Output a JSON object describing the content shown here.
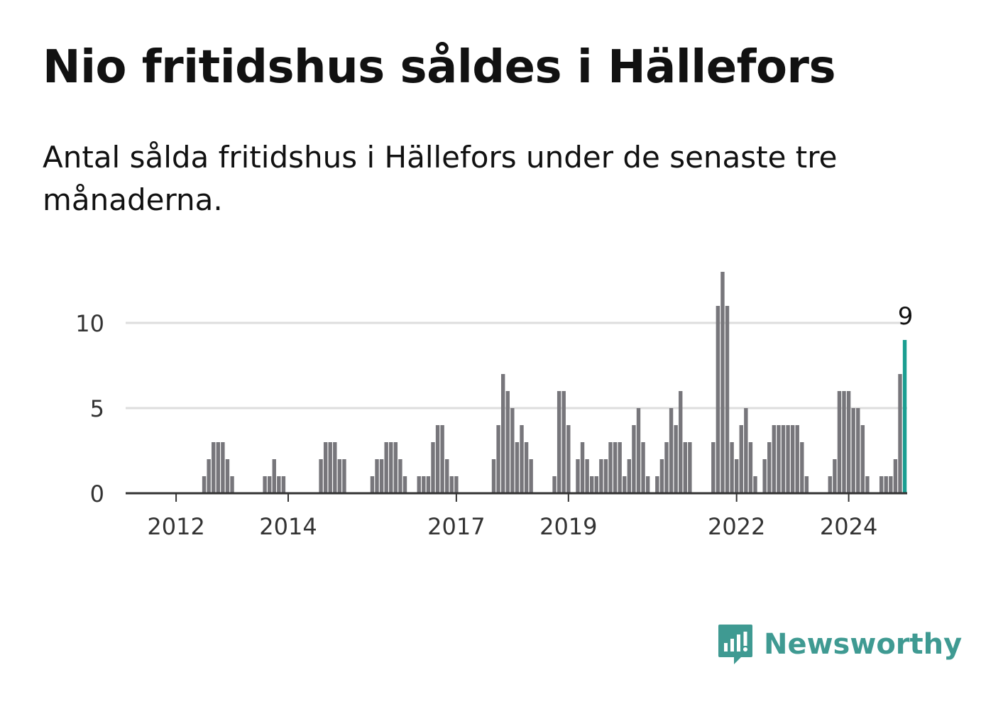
{
  "title": "Nio fritidshus såldes i Hällefors",
  "subtitle": "Antal sålda fritidshus i Hällefors under de senaste tre månaderna.",
  "brand": {
    "name": "Newsworthy",
    "icon": "newsworthy-logo-icon",
    "color": "#3f9a92"
  },
  "colors": {
    "bar": "#77767b",
    "highlight": "#1a9e91",
    "grid": "#dddddd",
    "axis": "#333333"
  },
  "chart_data": {
    "type": "bar",
    "x_type": "month",
    "start": "2011-07",
    "values": [
      0,
      0,
      0,
      0,
      0,
      0,
      0,
      0,
      0,
      0,
      0,
      0,
      1,
      2,
      3,
      3,
      3,
      2,
      1,
      0,
      0,
      0,
      0,
      0,
      0,
      1,
      1,
      2,
      1,
      1,
      0,
      0,
      0,
      0,
      0,
      0,
      0,
      2,
      3,
      3,
      3,
      2,
      2,
      0,
      0,
      0,
      0,
      0,
      1,
      2,
      2,
      3,
      3,
      3,
      2,
      1,
      0,
      0,
      1,
      1,
      1,
      3,
      4,
      4,
      2,
      1,
      1,
      0,
      0,
      0,
      0,
      0,
      0,
      0,
      2,
      4,
      7,
      6,
      5,
      3,
      4,
      3,
      2,
      0,
      0,
      0,
      0,
      1,
      6,
      6,
      4,
      0,
      2,
      3,
      2,
      1,
      1,
      2,
      2,
      3,
      3,
      3,
      1,
      2,
      4,
      5,
      3,
      1,
      0,
      1,
      2,
      3,
      5,
      4,
      6,
      3,
      3,
      0,
      0,
      0,
      0,
      3,
      11,
      13,
      11,
      3,
      2,
      4,
      5,
      3,
      1,
      0,
      2,
      3,
      4,
      4,
      4,
      4,
      4,
      4,
      3,
      1,
      0,
      0,
      0,
      0,
      1,
      2,
      6,
      6,
      6,
      5,
      5,
      4,
      1,
      0,
      0,
      1,
      1,
      1,
      2,
      7,
      9
    ],
    "highlight_last": true,
    "highlight_label": "9",
    "ylim": [
      0,
      13
    ],
    "yticks": [
      0,
      5,
      10
    ],
    "xticks": [
      "2012",
      "2014",
      "2017",
      "2019",
      "2022",
      "2024"
    ],
    "grid": true,
    "xlabel": "",
    "ylabel": ""
  }
}
